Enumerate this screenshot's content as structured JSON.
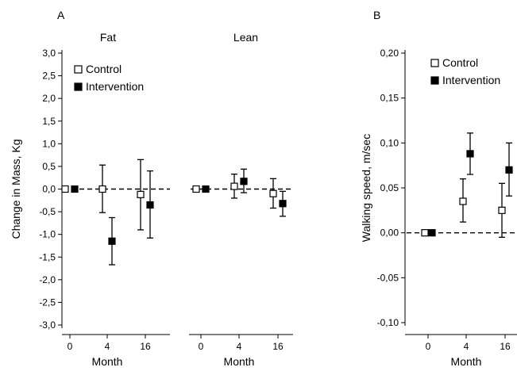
{
  "chart_data": [
    {
      "panel": "A",
      "type": "scatter",
      "ylabel": "Change in Mass, Kg",
      "ylim": [
        -3.0,
        3.0
      ],
      "yticks": [
        "3,0",
        "2,5",
        "2,0",
        "1,5",
        "1,0",
        "0,5",
        "0,0",
        "-0,5",
        "-1,0",
        "-1,5",
        "-2,0",
        "-2,5",
        "-3,0"
      ],
      "legend": {
        "placement": "top-left",
        "entries": [
          "Control",
          "Intervention"
        ]
      },
      "subpanels": [
        {
          "title": "Fat",
          "xlabel": "Month",
          "x": [
            0,
            4,
            16
          ],
          "xticks": [
            "0",
            "4",
            "16"
          ],
          "series": [
            {
              "name": "Control",
              "marker": "open-square",
              "y": [
                0.0,
                0.0,
                -0.12
              ],
              "err_low": [
                0.0,
                -0.52,
                -0.9
              ],
              "err_high": [
                0.0,
                0.53,
                0.65
              ]
            },
            {
              "name": "Intervention",
              "marker": "filled-square",
              "y": [
                0.0,
                -1.15,
                -0.35
              ],
              "err_low": [
                0.0,
                -1.67,
                -1.08
              ],
              "err_high": [
                0.0,
                -0.63,
                0.4
              ]
            }
          ]
        },
        {
          "title": "Lean",
          "xlabel": "Month",
          "x": [
            0,
            4,
            16
          ],
          "xticks": [
            "0",
            "4",
            "16"
          ],
          "series": [
            {
              "name": "Control",
              "marker": "open-square",
              "y": [
                0.0,
                0.06,
                -0.1
              ],
              "err_low": [
                0.0,
                -0.2,
                -0.42
              ],
              "err_high": [
                0.0,
                0.33,
                0.23
              ]
            },
            {
              "name": "Intervention",
              "marker": "filled-square",
              "y": [
                0.0,
                0.17,
                -0.32
              ],
              "err_low": [
                0.0,
                -0.08,
                -0.6
              ],
              "err_high": [
                0.0,
                0.44,
                -0.05
              ]
            }
          ]
        }
      ]
    },
    {
      "panel": "B",
      "type": "scatter",
      "ylabel": "Walking speed, m/sec",
      "ylim": [
        -0.1,
        0.2
      ],
      "yticks": [
        "0,20",
        "0,15",
        "0,10",
        "0,05",
        "0,00",
        "-0,05",
        "-0,10"
      ],
      "xlabel": "Month",
      "x": [
        0,
        4,
        16
      ],
      "xticks": [
        "0",
        "4",
        "16"
      ],
      "legend": {
        "placement": "top-left",
        "entries": [
          "Control",
          "Intervention"
        ]
      },
      "series": [
        {
          "name": "Control",
          "marker": "open-square",
          "y": [
            0.0,
            0.035,
            0.025
          ],
          "err_low": [
            0.0,
            0.012,
            -0.005
          ],
          "err_high": [
            0.0,
            0.06,
            0.055
          ]
        },
        {
          "name": "Intervention",
          "marker": "filled-square",
          "y": [
            0.0,
            0.088,
            0.07
          ],
          "err_low": [
            0.0,
            0.065,
            0.041
          ],
          "err_high": [
            0.0,
            0.111,
            0.1
          ]
        }
      ]
    }
  ]
}
